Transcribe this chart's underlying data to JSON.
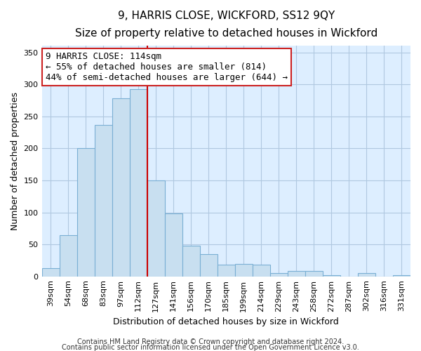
{
  "title": "9, HARRIS CLOSE, WICKFORD, SS12 9QY",
  "subtitle": "Size of property relative to detached houses in Wickford",
  "xlabel": "Distribution of detached houses by size in Wickford",
  "ylabel": "Number of detached properties",
  "categories": [
    "39sqm",
    "54sqm",
    "68sqm",
    "83sqm",
    "97sqm",
    "112sqm",
    "127sqm",
    "141sqm",
    "156sqm",
    "170sqm",
    "185sqm",
    "199sqm",
    "214sqm",
    "229sqm",
    "243sqm",
    "258sqm",
    "272sqm",
    "287sqm",
    "302sqm",
    "316sqm",
    "331sqm"
  ],
  "values": [
    13,
    64,
    200,
    237,
    278,
    293,
    150,
    98,
    48,
    35,
    18,
    19,
    18,
    5,
    8,
    8,
    2,
    0,
    5,
    0,
    2
  ],
  "bar_color": "#c8dff0",
  "bar_edge_color": "#7aafd4",
  "vline_x_index": 5,
  "vline_color": "#cc0000",
  "ylim": [
    0,
    360
  ],
  "yticks": [
    0,
    50,
    100,
    150,
    200,
    250,
    300,
    350
  ],
  "annotation_line1": "9 HARRIS CLOSE: 114sqm",
  "annotation_line2": "← 55% of detached houses are smaller (814)",
  "annotation_line3": "44% of semi-detached houses are larger (644) →",
  "footer1": "Contains HM Land Registry data © Crown copyright and database right 2024.",
  "footer2": "Contains public sector information licensed under the Open Government Licence v3.0.",
  "bg_color": "#ffffff",
  "plot_bg_color": "#ddeeff",
  "grid_color": "#b0c8e0",
  "title_fontsize": 11,
  "subtitle_fontsize": 9.5,
  "axis_label_fontsize": 9,
  "tick_fontsize": 8,
  "annotation_fontsize": 9,
  "footer_fontsize": 7
}
